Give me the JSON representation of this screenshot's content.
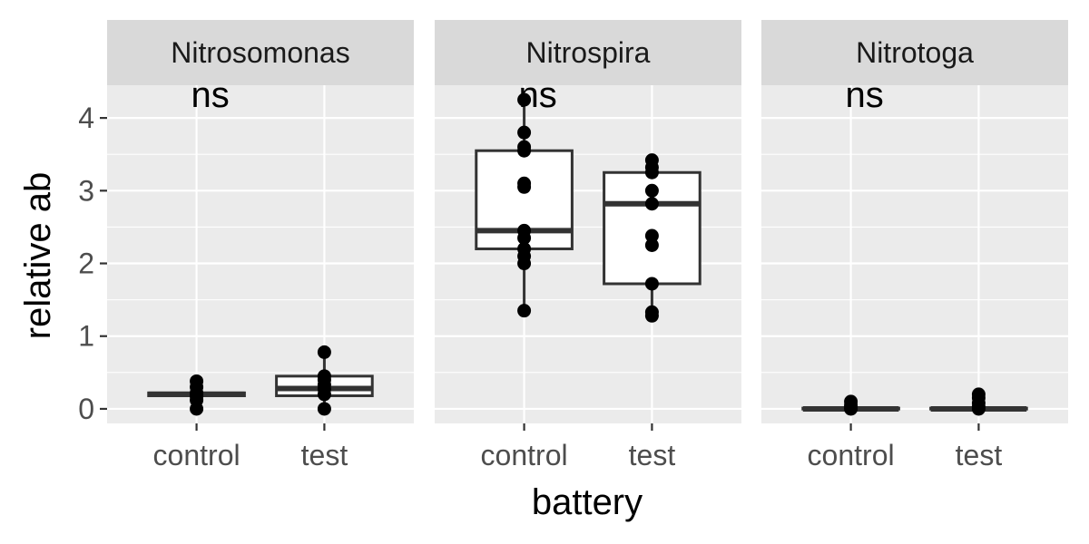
{
  "chart_data": {
    "type": "boxplot",
    "xlabel": "battery",
    "ylabel": "relative ab",
    "ylim": [
      -0.2,
      4.45
    ],
    "yticks": [
      0,
      1,
      2,
      3,
      4
    ],
    "categories": [
      "control",
      "test"
    ],
    "grid": true,
    "facets": [
      {
        "label": "Nitrosomonas",
        "annotation": "ns",
        "groups": [
          {
            "category": "control",
            "q1": 0.18,
            "median": 0.2,
            "q3": 0.22,
            "whisker_low": 0.18,
            "whisker_high": 0.22,
            "points": [
              0.0,
              0.12,
              0.17,
              0.2,
              0.22,
              0.3,
              0.38
            ]
          },
          {
            "category": "test",
            "q1": 0.18,
            "median": 0.28,
            "q3": 0.45,
            "whisker_low": 0.0,
            "whisker_high": 0.78,
            "points": [
              0.0,
              0.2,
              0.27,
              0.33,
              0.4,
              0.45,
              0.78
            ]
          }
        ]
      },
      {
        "label": "Nitrospira",
        "annotation": "ns",
        "groups": [
          {
            "category": "control",
            "q1": 2.2,
            "median": 2.45,
            "q3": 3.55,
            "whisker_low": 1.35,
            "whisker_high": 4.25,
            "points": [
              1.35,
              2.0,
              2.1,
              2.2,
              2.35,
              2.45,
              3.05,
              3.1,
              3.55,
              3.6,
              3.8,
              4.25
            ]
          },
          {
            "category": "test",
            "q1": 1.72,
            "median": 2.82,
            "q3": 3.25,
            "whisker_low": 1.28,
            "whisker_high": 3.42,
            "points": [
              1.28,
              1.33,
              1.72,
              2.25,
              2.38,
              2.82,
              3.0,
              3.25,
              3.32,
              3.42
            ]
          }
        ]
      },
      {
        "label": "Nitrotoga",
        "annotation": "ns",
        "groups": [
          {
            "category": "control",
            "q1": 0.0,
            "median": 0.0,
            "q3": 0.01,
            "whisker_low": 0.0,
            "whisker_high": 0.01,
            "points": [
              0.0,
              0.02,
              0.05,
              0.1
            ]
          },
          {
            "category": "test",
            "q1": 0.0,
            "median": 0.0,
            "q3": 0.01,
            "whisker_low": 0.0,
            "whisker_high": 0.01,
            "points": [
              0.0,
              0.03,
              0.08,
              0.15,
              0.2
            ]
          }
        ]
      }
    ]
  },
  "colors": {
    "panel_background": "#ebebeb",
    "strip_background": "#d9d9d9",
    "grid": "#ffffff",
    "box_fill": "#ffffff",
    "box_line": "#333333",
    "point": "#000000",
    "axis_text": "#4d4d4d",
    "title_text": "#000000"
  }
}
